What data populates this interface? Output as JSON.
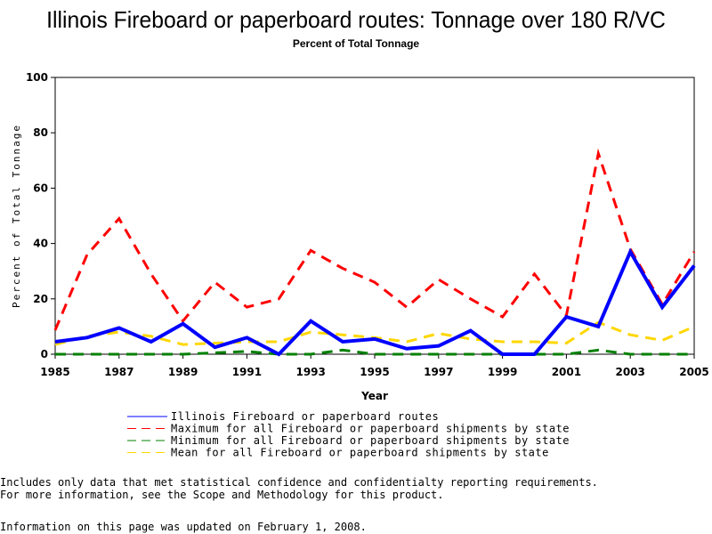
{
  "chart_data": {
    "type": "line",
    "title": "Illinois Fireboard or paperboard routes: Tonnage over 180 R/VC",
    "subtitle": "Percent of Total Tonnage",
    "xlabel": "Year",
    "ylabel": "Percent of Total Tonnage",
    "xlim": [
      1985,
      2005
    ],
    "ylim": [
      0,
      100
    ],
    "xticks": [
      "1985",
      "1987",
      "1989",
      "1991",
      "1993",
      "1995",
      "1997",
      "1999",
      "2001",
      "2003",
      "2005"
    ],
    "yticks": [
      "0",
      "20",
      "40",
      "60",
      "80",
      "100"
    ],
    "grid": false,
    "legend_position": "bottom",
    "x": [
      1985,
      1986,
      1987,
      1988,
      1989,
      1990,
      1991,
      1992,
      1993,
      1994,
      1995,
      1996,
      1997,
      1998,
      1999,
      2000,
      2001,
      2002,
      2003,
      2004,
      2005
    ],
    "series": [
      {
        "name": "Illinois Fireboard or paperboard routes",
        "color": "#0000ff",
        "style": "solid",
        "values": [
          4.5,
          6,
          9.5,
          4.5,
          11,
          2.5,
          6,
          0,
          12,
          4.5,
          5.5,
          2,
          3,
          8.5,
          0,
          0,
          13.5,
          10,
          37,
          17,
          32
        ]
      },
      {
        "name": "Maximum for all Fireboard or paperboard shipments by state",
        "color": "#ff0000",
        "style": "dashed",
        "values": [
          8.7,
          36,
          49,
          29,
          12,
          26,
          17,
          20,
          37.5,
          31,
          26,
          17,
          27,
          20,
          13.5,
          29,
          14,
          72.5,
          38,
          18,
          37
        ]
      },
      {
        "name": "Minimum for all Fireboard or paperboard shipments by state",
        "color": "#008000",
        "style": "dashed",
        "values": [
          0,
          0,
          0,
          0,
          0,
          0.5,
          1,
          0,
          0,
          1.5,
          0,
          0,
          0,
          0,
          0,
          0,
          0,
          1.5,
          0,
          0,
          0
        ]
      },
      {
        "name": "Mean for all Fireboard or paperboard shipments by state",
        "color": "#ffd700",
        "style": "dashed",
        "values": [
          3.5,
          6.5,
          8,
          6.5,
          3.5,
          4,
          4.5,
          4.5,
          8,
          7,
          6,
          4.5,
          7.5,
          5.5,
          4.5,
          4.5,
          4,
          11.5,
          7,
          5,
          10
        ]
      }
    ]
  },
  "footer": {
    "line1": "Includes only data that met statistical confidence and confidentialty reporting requirements.",
    "line2": "For more information, see the Scope and Methodology for this product.",
    "line3": "Information on this page was updated on February 1, 2008."
  }
}
